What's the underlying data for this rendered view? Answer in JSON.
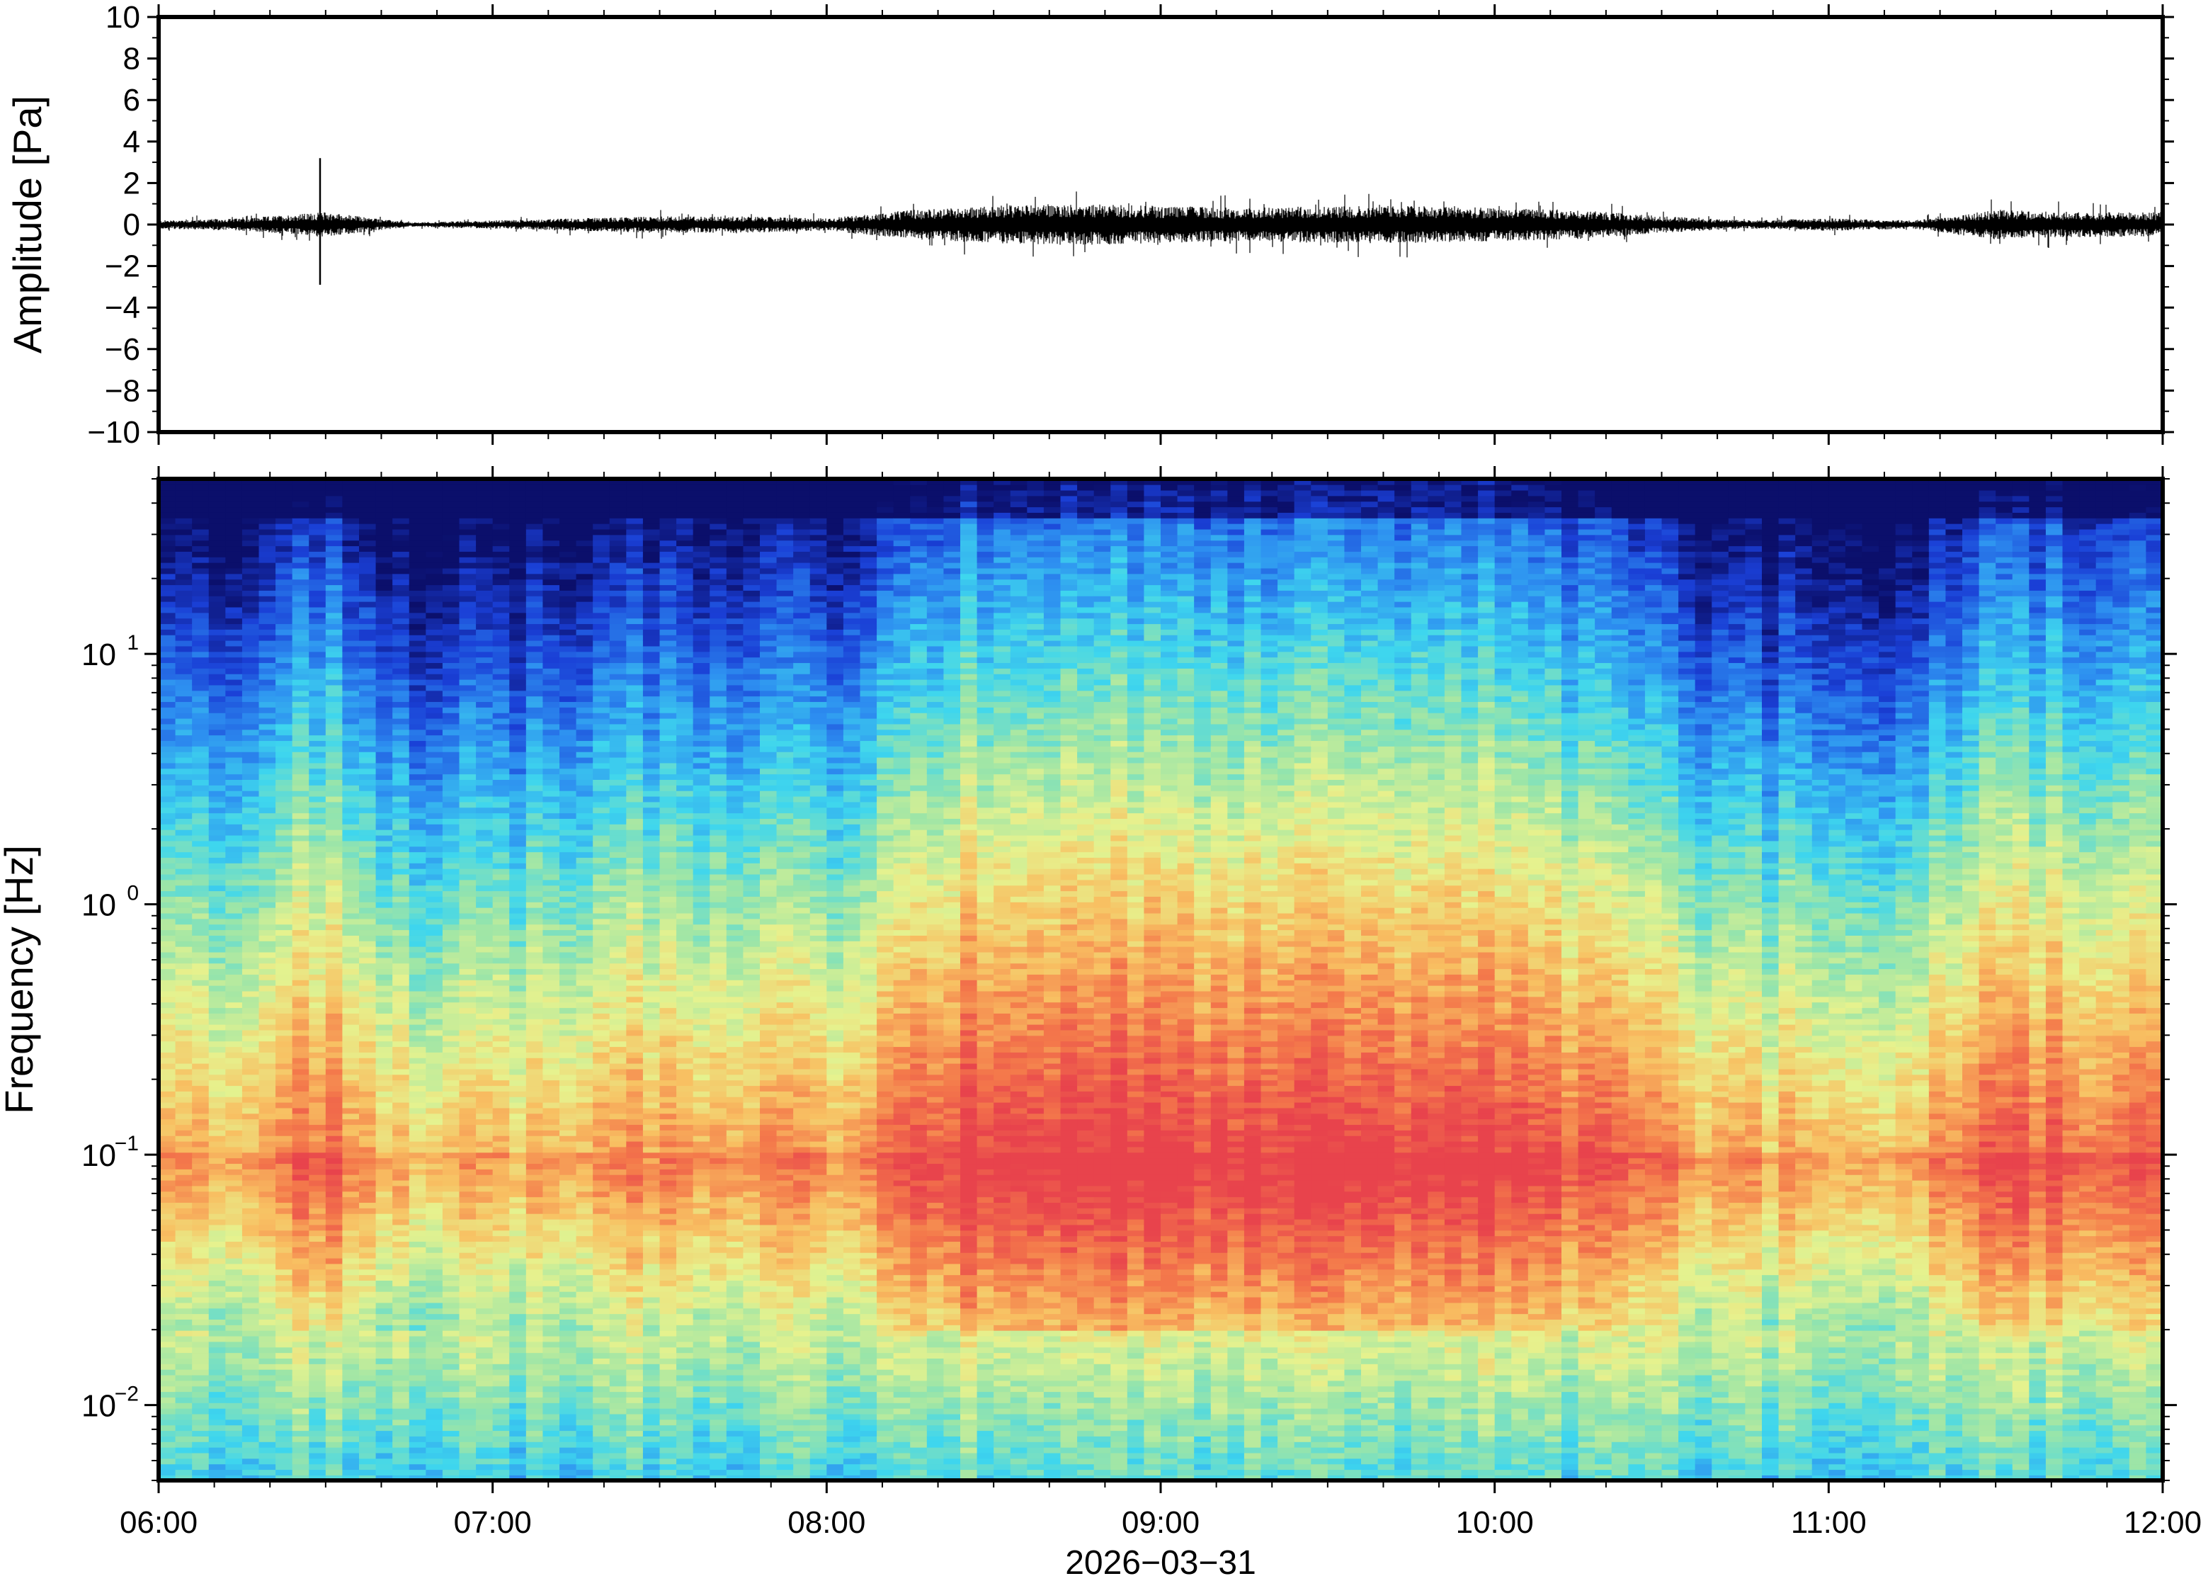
{
  "chart_data": [
    {
      "type": "line",
      "panel": "waveform",
      "ylabel": "Amplitude [Pa]",
      "ylim": [
        -10,
        10
      ],
      "yticks": [
        "10",
        "8",
        "6",
        "4",
        "2",
        "0",
        "−2",
        "−4",
        "−6",
        "−8",
        "−10"
      ],
      "ytick_values": [
        10,
        8,
        6,
        4,
        2,
        0,
        -2,
        -4,
        -6,
        -8,
        -10
      ],
      "xlim": [
        "06:00",
        "12:00"
      ],
      "events": [
        {
          "time": "06:29",
          "peak_max": 3.2,
          "peak_min": -2.9
        }
      ],
      "noise_envelope": {
        "x": [
          "06:00",
          "06:15",
          "06:30",
          "06:45",
          "07:00",
          "07:15",
          "07:30",
          "07:45",
          "08:00",
          "08:15",
          "08:30",
          "08:45",
          "09:00",
          "09:15",
          "09:30",
          "09:45",
          "10:00",
          "10:15",
          "10:30",
          "10:45",
          "11:00",
          "11:15",
          "11:30",
          "11:45",
          "12:00"
        ],
        "amplitude": [
          0.2,
          0.3,
          0.6,
          0.1,
          0.2,
          0.3,
          0.4,
          0.4,
          0.3,
          0.7,
          0.9,
          1.0,
          0.9,
          0.8,
          0.9,
          0.9,
          0.8,
          0.7,
          0.4,
          0.2,
          0.3,
          0.2,
          0.7,
          0.6,
          0.6
        ]
      }
    },
    {
      "type": "heatmap",
      "panel": "spectrogram",
      "ylabel": "Frequency [Hz]",
      "yscale": "log",
      "ylim": [
        0.005,
        50
      ],
      "yticks": [
        {
          "base": "10",
          "exp": "1",
          "value": 10
        },
        {
          "base": "10",
          "exp": "0",
          "value": 1
        },
        {
          "base": "10",
          "exp": "−1",
          "value": 0.1
        },
        {
          "base": "10",
          "exp": "−2",
          "value": 0.01
        }
      ],
      "colormap": "blue-cyan-yellow-red",
      "colorscale": [
        "#0b0f6b",
        "#1a3fd6",
        "#2d8ef0",
        "#3ed6ee",
        "#9be5a8",
        "#e6f28e",
        "#f8c062",
        "#f47a4b",
        "#e8434c"
      ],
      "xlabel": "2026−03−31",
      "xticks": [
        "06:00",
        "07:00",
        "08:00",
        "09:00",
        "10:00",
        "11:00",
        "12:00"
      ],
      "xlim": [
        "06:00",
        "12:00"
      ]
    }
  ]
}
